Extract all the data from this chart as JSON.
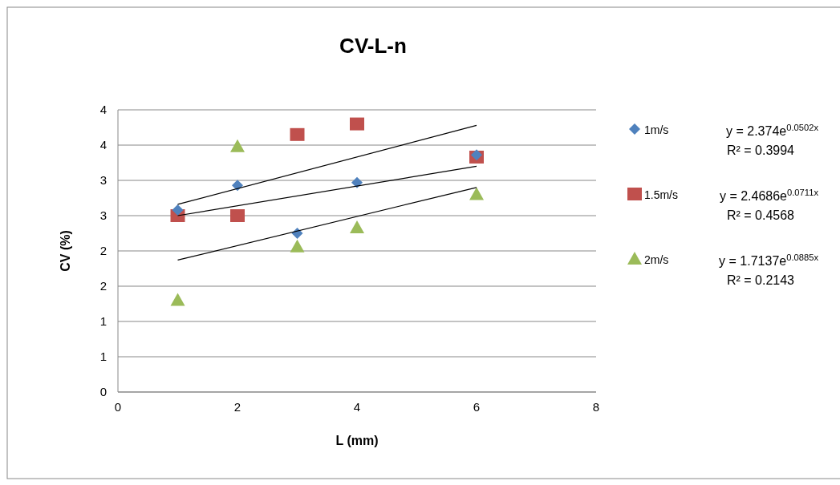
{
  "chart_data": {
    "type": "scatter",
    "title": "CV-L-n",
    "xlabel": "L (mm)",
    "ylabel": "CV (%)",
    "xlim": [
      0,
      8
    ],
    "xticks": [
      0,
      2,
      4,
      6,
      8
    ],
    "ylim": [
      0,
      4
    ],
    "yticks": [
      {
        "value": 0,
        "label": "0"
      },
      {
        "value": 0.5,
        "label": "1"
      },
      {
        "value": 1,
        "label": "1"
      },
      {
        "value": 1.5,
        "label": "2"
      },
      {
        "value": 2,
        "label": "2"
      },
      {
        "value": 2.5,
        "label": "3"
      },
      {
        "value": 3,
        "label": "3"
      },
      {
        "value": 3.5,
        "label": "4"
      },
      {
        "value": 4,
        "label": "4"
      }
    ],
    "grid": "y",
    "legend": "right",
    "series": [
      {
        "name": "1m/s",
        "color": "#4f81bd",
        "marker": "diamond",
        "x": [
          1,
          2,
          3,
          4,
          6
        ],
        "values": [
          2.58,
          2.93,
          2.25,
          2.97,
          3.36
        ]
      },
      {
        "name": "1.5m/s",
        "color": "#c0504d",
        "marker": "square",
        "x": [
          1,
          2,
          3,
          4,
          6
        ],
        "values": [
          2.5,
          2.5,
          3.65,
          3.8,
          3.33
        ]
      },
      {
        "name": "2m/s",
        "color": "#9bbb59",
        "marker": "triangle",
        "x": [
          1,
          2,
          3,
          4,
          6
        ],
        "values": [
          1.3,
          3.48,
          2.06,
          2.33,
          2.8
        ]
      },
      {
        "type": "line",
        "color": "#000000",
        "marker": "none",
        "x": [
          1,
          6
        ],
        "values": [
          2.66,
          3.78
        ]
      },
      {
        "type": "line",
        "color": "#000000",
        "marker": "none",
        "x": [
          1,
          6
        ],
        "values": [
          2.5,
          3.2
        ]
      },
      {
        "type": "line",
        "color": "#000000",
        "marker": "none",
        "x": [
          1,
          6
        ],
        "values": [
          1.87,
          2.9
        ]
      }
    ],
    "annotations": [
      "y = 2.374e$^{0.0502x}$",
      "R² = 0.3994",
      "y = 2.4686e$^{0.0711x}$",
      "R² = 0.4568",
      "y = 1.7137e$^{0.0885x}$",
      "R² = 0.2143"
    ]
  }
}
